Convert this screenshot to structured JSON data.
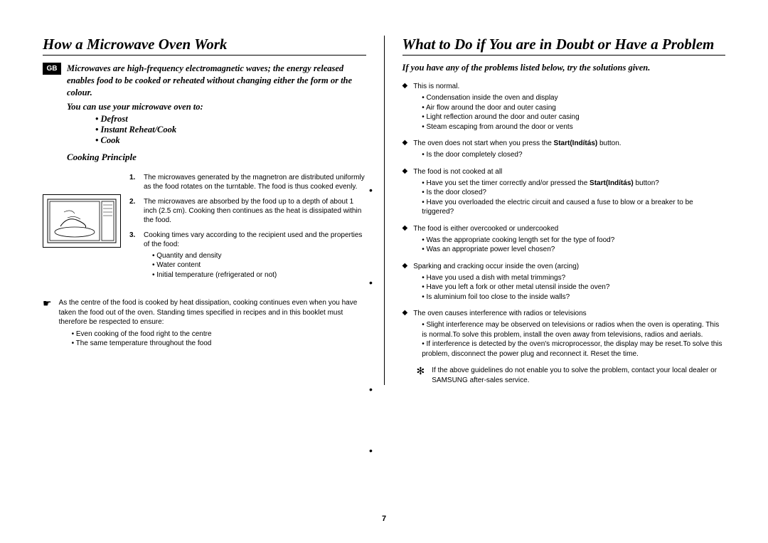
{
  "left": {
    "heading": "How a Microwave Oven Work",
    "badge": "GB",
    "intro": "Microwaves are high-frequency electromagnetic waves; the energy released enables food to be cooked or reheated without changing either the form or the colour.",
    "use_intro": "You can use your microwave oven to:",
    "uses": [
      "Defrost",
      "Instant Reheat/Cook",
      "Cook"
    ],
    "principle_title": "Cooking Principle",
    "principles": [
      {
        "num": "1.",
        "text": "The microwaves generated by the magnetron are distributed uniformly as the food rotates on the turntable. The food is thus cooked evenly."
      },
      {
        "num": "2.",
        "text": "The microwaves are absorbed by the food up to a depth of about 1 inch (2.5 cm). Cooking then continues as the heat is dissipated within the food."
      },
      {
        "num": "3.",
        "text": "Cooking times vary according to the recipient used and the properties of the food:",
        "subs": [
          "Quantity and density",
          "Water content",
          "Initial temperature (refrigerated or not)"
        ]
      }
    ],
    "pointer": "As the centre of the food is cooked by heat dissipation, cooking continues even when you have taken the food out of the oven. Standing times specified in recipes and in this booklet must therefore be respected to ensure:",
    "pointer_subs": [
      "Even cooking of the food right to the centre",
      "The same temperature throughout the food"
    ]
  },
  "right": {
    "heading": "What to Do if You are in Doubt or Have a Problem",
    "intro": "If you have any of the problems listed below, try the solutions given.",
    "items": [
      {
        "title": "This is normal.",
        "subs": [
          "Condensation inside the oven and display",
          "Air flow around the door and outer casing",
          "Light reflection around the door and outer casing",
          "Steam escaping from around the door or vents"
        ]
      },
      {
        "title_html": "The oven does not start when you press the <b>Start(Indítás)</b> button.",
        "subs": [
          "Is the door completely closed?"
        ]
      },
      {
        "title": "The food is not cooked at all",
        "subs_html": [
          "Have you set the timer correctly and/or pressed the <b>Start(Indítás)</b> button?",
          "Is the door closed?",
          "Have you overloaded the electric circuit and caused a fuse to blow or a breaker to be triggered?"
        ]
      },
      {
        "title": "The food is either overcooked or undercooked",
        "subs": [
          "Was the appropriate cooking length set for the type of food?",
          "Was an appropriate power level chosen?"
        ]
      },
      {
        "title": "Sparking and cracking occur inside the oven (arcing)",
        "subs": [
          "Have you used a dish with metal trimmings?",
          "Have you left a fork or other metal utensil inside the oven?",
          "Is aluminium foil too close to the inside walls?"
        ]
      },
      {
        "title": "The oven causes interference with radios or televisions",
        "subs": [
          "Slight interference may be observed on televisions or radios when the oven is operating. This is normal.To solve this problem, install the oven away from televisions, radios and aerials.",
          "If interference is detected by the oven's microprocessor, the display may be reset.To solve this problem, disconnect the power plug and reconnect it. Reset the time."
        ]
      }
    ],
    "footer_note": "If the above guidelines do not enable you to solve the problem, contact your local dealer or SAMSUNG after-sales service."
  },
  "page_number": "7"
}
